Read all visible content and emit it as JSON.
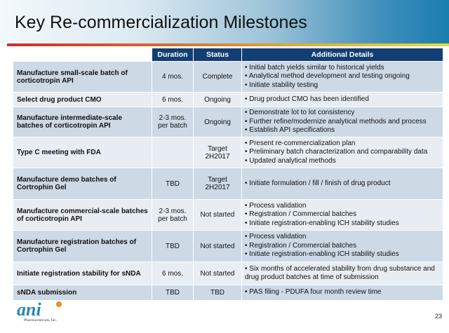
{
  "title": "Key Re-commercialization Milestones",
  "headers": [
    "Duration",
    "Status",
    "Additional Details"
  ],
  "rows": [
    {
      "label": "Manufacture small-scale batch of corticotropin API",
      "duration": "4 mos.",
      "status": "Complete",
      "details": [
        "Initial batch yields similar to historical yields",
        "Analytical method development and testing ongoing",
        "Initiate stability testing"
      ]
    },
    {
      "label": "Select drug product CMO",
      "duration": "6 mos.",
      "status": "Ongoing",
      "details": [
        "Drug product CMO has been identified"
      ]
    },
    {
      "label": "Manufacture intermediate-scale batches of corticotropin API",
      "duration": "2-3 mos. per batch",
      "status": "Ongoing",
      "details": [
        "Demonstrate lot to lot consistency",
        "Further refine/modernize analytical methods and process",
        "Establish API specifications"
      ]
    },
    {
      "label": "Type C meeting with FDA",
      "duration": "",
      "status": "Target 2H2017",
      "details": [
        "Present re-commercialization plan",
        "Preliminary batch characterization and comparability data",
        "Updated analytical methods"
      ]
    },
    {
      "label": "Manufacture demo batches of Cortrophin Gel",
      "duration": "TBD",
      "status": "Target 2H2017",
      "details": [
        "Initiate formulation / fill / finish of drug product"
      ]
    },
    {
      "label": "Manufacture commercial-scale batches of corticotropin API",
      "duration": "2-3 mos. per batch",
      "status": "Not started",
      "details": [
        "Process validation",
        "Registration / Commercial batches",
        "Initiate registration-enabling ICH stability studies"
      ]
    },
    {
      "label": "Manufacture registration batches of Cortrophin Gel",
      "duration": "TBD",
      "status": "Not started",
      "details": [
        "Process validation",
        "Registration / Commercial batches",
        "Initiate registration-enabling ICH stability studies"
      ]
    },
    {
      "label": "Initiate registration stability for sNDA",
      "duration": "6 mos.",
      "status": "Not started",
      "details": [
        "Six months of accelerated stability from drug substance and drug product batches at time of submission"
      ]
    },
    {
      "label": "sNDA submission",
      "duration": "TBD",
      "status": "TBD",
      "details": [
        "PAS filing - PDUFA four month review time"
      ]
    }
  ],
  "logo": {
    "name": "ani",
    "sub": "Pharmaceuticals, Inc."
  },
  "page_number": "23"
}
